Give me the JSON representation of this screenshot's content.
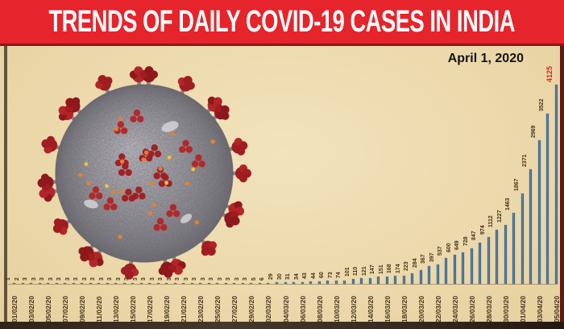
{
  "banner": {
    "title": "TRENDS OF DAILY COVID-19 CASES IN INDIA",
    "background_color": "#e6242b",
    "text_color": "#ffffff"
  },
  "annotation": {
    "date_label": "April 1, 2020"
  },
  "icons": {
    "coronavirus_illustration": "coronavirus-3d-render"
  },
  "colors": {
    "panel_background": "#ecd9ac",
    "bar": "#41719c",
    "value_label": "#42331a",
    "highlight_value": "#e21f26",
    "date_label": "#45351c"
  },
  "chart_data": {
    "type": "bar",
    "title": "TRENDS OF DAILY COVID-19 CASES IN INDIA",
    "xlabel": "",
    "ylabel": "",
    "ylim": [
      0,
      4125
    ],
    "grid": false,
    "legend": null,
    "value_labels_rotated": true,
    "highlight": {
      "index": 64,
      "value": 4125,
      "color": "#e21f26"
    },
    "x": [
      "01/02/20",
      "02/02/20",
      "03/02/20",
      "04/02/20",
      "05/02/20",
      "06/02/20",
      "07/02/20",
      "08/02/20",
      "09/02/20",
      "10/02/20",
      "11/02/20",
      "12/02/20",
      "13/02/20",
      "14/02/20",
      "15/02/20",
      "16/02/20",
      "17/02/20",
      "18/02/20",
      "19/02/20",
      "20/02/20",
      "21/02/20",
      "22/02/20",
      "23/02/20",
      "24/02/20",
      "25/02/20",
      "26/02/20",
      "27/02/20",
      "28/02/20",
      "29/02/20",
      "01/03/20",
      "02/03/20",
      "03/03/20",
      "04/03/20",
      "05/03/20",
      "06/03/20",
      "07/03/20",
      "08/03/20",
      "09/03/20",
      "10/03/20",
      "11/03/20",
      "12/03/20",
      "13/03/20",
      "14/03/20",
      "15/03/20",
      "16/03/20",
      "17/03/20",
      "18/03/20",
      "19/03/20",
      "20/03/20",
      "21/03/20",
      "22/03/20",
      "23/03/20",
      "24/03/20",
      "25/03/20",
      "26/03/20",
      "27/03/20",
      "28/03/20",
      "29/03/20",
      "30/03/20",
      "31/03/20",
      "01/04/20",
      "02/04/20",
      "03/04/20",
      "04/04/20",
      "05/04/20"
    ],
    "values": [
      1,
      2,
      3,
      3,
      3,
      3,
      3,
      3,
      3,
      3,
      3,
      3,
      3,
      3,
      3,
      3,
      3,
      3,
      3,
      3,
      3,
      3,
      3,
      3,
      3,
      3,
      3,
      3,
      3,
      5,
      6,
      29,
      30,
      31,
      34,
      43,
      44,
      60,
      73,
      74,
      101,
      110,
      121,
      147,
      151,
      168,
      174,
      223,
      284,
      367,
      397,
      537,
      600,
      649,
      728,
      847,
      974,
      1112,
      1227,
      1463,
      1867,
      2371,
      2969,
      3522,
      4125
    ],
    "x_tick_labels": [
      "01/02/20",
      "03/02/20",
      "05/02/20",
      "07/02/20",
      "09/02/20",
      "11/02/20",
      "13/02/20",
      "15/02/20",
      "17/02/20",
      "19/02/20",
      "21/02/20",
      "23/02/20",
      "25/02/20",
      "27/02/20",
      "29/02/20",
      "02/03/20",
      "04/03/20",
      "06/03/20",
      "08/03/20",
      "10/03/20",
      "12/03/20",
      "14/03/20",
      "16/03/20",
      "18/03/20",
      "20/03/20",
      "22/03/20",
      "24/03/20",
      "26/03/20",
      "28/03/20",
      "30/03/20",
      "01/04/20",
      "03/04/20",
      "05/04/20"
    ]
  }
}
